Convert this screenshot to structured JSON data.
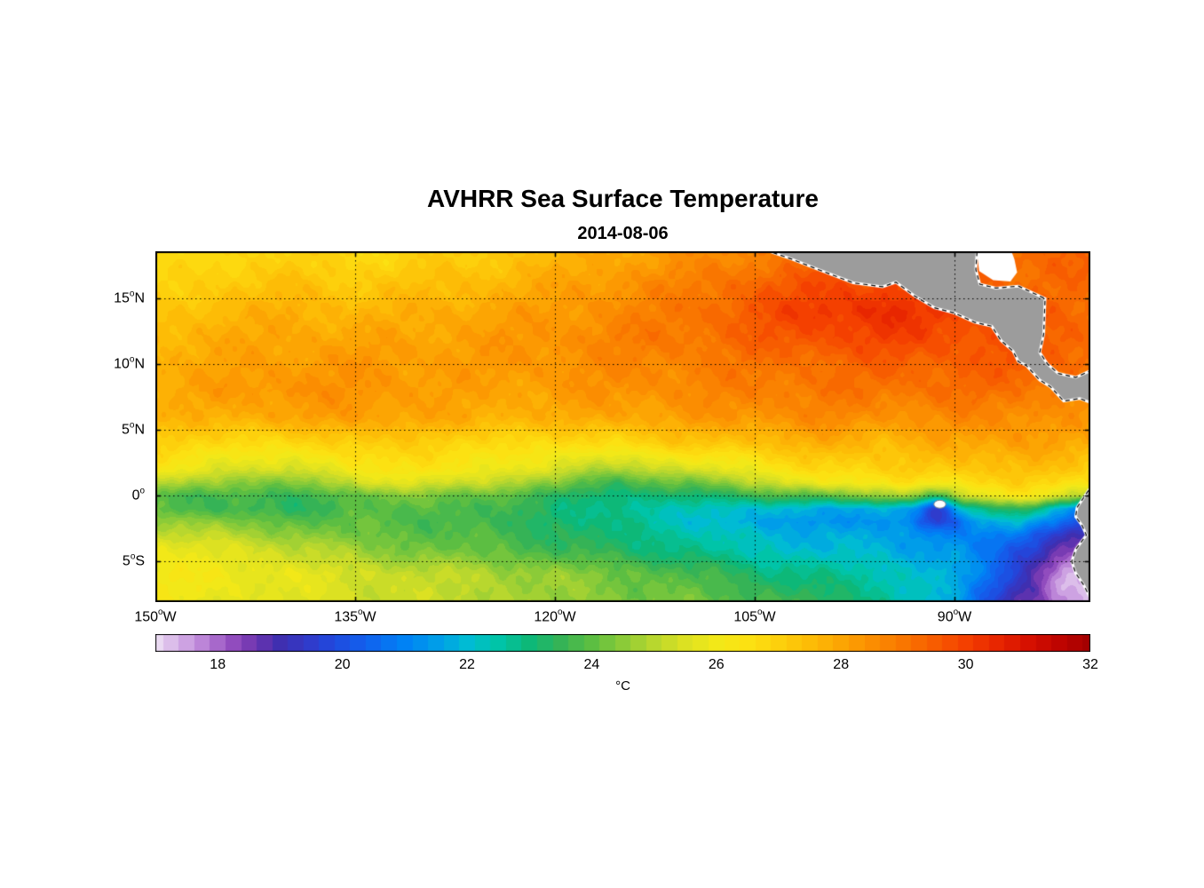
{
  "title": "AVHRR Sea Surface Temperature",
  "subtitle": "2014-08-06",
  "chart_data": {
    "type": "heatmap",
    "lon_range": [
      -150,
      -79.8
    ],
    "lat_range": [
      -8.1,
      18.6
    ],
    "lat_ticks": [
      {
        "num": "15",
        "sup": "o",
        "suffix": "N",
        "lat": 15
      },
      {
        "num": "10",
        "sup": "o",
        "suffix": "N",
        "lat": 10
      },
      {
        "num": "5",
        "sup": "o",
        "suffix": "N",
        "lat": 5
      },
      {
        "num": "0",
        "sup": "o",
        "suffix": "",
        "lat": 0
      },
      {
        "num": "5",
        "sup": "o",
        "suffix": "S",
        "lat": -5
      }
    ],
    "lon_ticks": [
      {
        "num": "150",
        "sup": "o",
        "suffix": "W",
        "lon": -150
      },
      {
        "num": "135",
        "sup": "o",
        "suffix": "W",
        "lon": -135
      },
      {
        "num": "120",
        "sup": "o",
        "suffix": "W",
        "lon": -120
      },
      {
        "num": "105",
        "sup": "o",
        "suffix": "W",
        "lon": -105
      },
      {
        "num": "90",
        "sup": "o",
        "suffix": "W",
        "lon": -90
      }
    ],
    "grid": {
      "lons": [
        -150,
        -145,
        -140,
        -135,
        -130,
        -125,
        -120,
        -115,
        -110,
        -105,
        -100,
        -95,
        -90,
        -85,
        -80
      ],
      "lats": [
        18,
        16,
        14,
        12,
        10,
        8,
        6,
        4,
        2,
        1,
        0,
        -1,
        -2,
        -3,
        -4,
        -6,
        -8
      ],
      "sst": [
        [
          26.6,
          26.8,
          27.0,
          26.8,
          27.0,
          27.2,
          27.6,
          28.0,
          28.4,
          28.8,
          29.2,
          29.6,
          29.4,
          29.2,
          29.4
        ],
        [
          26.8,
          27.2,
          27.4,
          27.2,
          27.4,
          27.6,
          28.0,
          28.4,
          28.8,
          29.4,
          29.8,
          30.0,
          29.6,
          29.2,
          29.2
        ],
        [
          27.2,
          27.6,
          27.8,
          27.6,
          27.8,
          28.0,
          28.2,
          28.6,
          29.0,
          29.6,
          30.2,
          30.4,
          30.0,
          29.4,
          29.2
        ],
        [
          27.6,
          27.9,
          28.0,
          28.0,
          28.0,
          28.2,
          28.4,
          28.8,
          29.0,
          29.4,
          29.8,
          30.0,
          29.8,
          29.6,
          29.4
        ],
        [
          27.8,
          28.0,
          28.2,
          28.3,
          28.2,
          28.2,
          28.4,
          28.6,
          28.8,
          29.0,
          29.2,
          29.4,
          29.4,
          29.6,
          29.2
        ],
        [
          27.8,
          28.2,
          28.4,
          28.4,
          28.2,
          28.0,
          28.2,
          28.4,
          28.6,
          28.8,
          29.0,
          29.0,
          29.2,
          29.0,
          28.8
        ],
        [
          27.6,
          27.8,
          28.0,
          28.2,
          28.0,
          27.8,
          27.8,
          28.0,
          28.2,
          28.4,
          28.6,
          28.4,
          28.6,
          28.6,
          28.2
        ],
        [
          27.0,
          26.8,
          26.6,
          27.2,
          27.0,
          26.8,
          26.6,
          26.8,
          27.2,
          27.4,
          27.8,
          27.6,
          27.9,
          28.2,
          27.8
        ],
        [
          26.2,
          25.6,
          25.2,
          26.2,
          26.4,
          26.0,
          25.4,
          24.8,
          25.4,
          26.0,
          26.8,
          27.0,
          27.2,
          27.5,
          27.0
        ],
        [
          25.2,
          24.6,
          24.2,
          25.4,
          25.6,
          25.2,
          24.4,
          23.6,
          24.2,
          25.0,
          26.0,
          26.4,
          26.7,
          27.0,
          26.4
        ],
        [
          23.9,
          23.7,
          23.5,
          24.0,
          24.4,
          24.0,
          23.4,
          22.9,
          23.1,
          23.5,
          24.0,
          24.6,
          25.6,
          26.2,
          25.0
        ],
        [
          24.0,
          23.6,
          23.4,
          23.8,
          24.0,
          23.6,
          23.2,
          22.6,
          22.4,
          22.0,
          21.8,
          21.6,
          22.4,
          23.6,
          20.5
        ],
        [
          24.8,
          24.4,
          24.0,
          24.0,
          23.8,
          23.6,
          23.2,
          22.8,
          22.2,
          21.6,
          21.4,
          21.2,
          21.0,
          22.0,
          19.8
        ],
        [
          25.4,
          25.0,
          24.6,
          24.2,
          24.0,
          23.8,
          23.4,
          23.0,
          22.6,
          22.0,
          21.8,
          21.6,
          21.2,
          20.6,
          19.0
        ],
        [
          25.8,
          25.6,
          25.2,
          24.6,
          24.2,
          24.0,
          23.6,
          23.2,
          22.8,
          22.2,
          22.0,
          21.8,
          21.4,
          20.0,
          18.6
        ],
        [
          26.2,
          26.0,
          25.8,
          25.4,
          25.2,
          24.9,
          24.6,
          24.2,
          23.8,
          23.2,
          22.8,
          22.4,
          21.8,
          19.5,
          18.2
        ],
        [
          26.0,
          25.8,
          25.6,
          25.4,
          25.2,
          25.0,
          24.6,
          24.4,
          24.2,
          23.8,
          23.4,
          22.8,
          21.5,
          18.8,
          17.6
        ]
      ]
    },
    "cold_spots": [
      {
        "lon": -91.3,
        "lat": -0.8,
        "r": 1.5,
        "delta": -2.4
      },
      {
        "lon": -81.5,
        "lat": -6.0,
        "r": 2.0,
        "delta": -1.2
      }
    ],
    "colorbar": {
      "range": [
        17,
        32
      ],
      "ticks": [
        18,
        20,
        22,
        24,
        26,
        28,
        30,
        32
      ],
      "label": "°C",
      "stops": [
        [
          17.0,
          "#EADAF2"
        ],
        [
          17.4,
          "#D4AEE6"
        ],
        [
          17.8,
          "#B87FD6"
        ],
        [
          18.2,
          "#9650C0"
        ],
        [
          18.6,
          "#6E34AE"
        ],
        [
          19.0,
          "#3F2FB0"
        ],
        [
          19.4,
          "#3338C6"
        ],
        [
          19.8,
          "#2247DC"
        ],
        [
          20.4,
          "#1162EE"
        ],
        [
          21.0,
          "#0082F5"
        ],
        [
          21.6,
          "#00A2E6"
        ],
        [
          22.0,
          "#00BBD4"
        ],
        [
          22.5,
          "#00C4A8"
        ],
        [
          23.0,
          "#0DB878"
        ],
        [
          23.5,
          "#35B356"
        ],
        [
          24.0,
          "#5CBE42"
        ],
        [
          24.5,
          "#8BCB38"
        ],
        [
          25.0,
          "#B8D72E"
        ],
        [
          25.5,
          "#DCE122"
        ],
        [
          26.0,
          "#F2E818"
        ],
        [
          26.5,
          "#FCE112"
        ],
        [
          27.0,
          "#FDD00C"
        ],
        [
          27.5,
          "#FDBC06"
        ],
        [
          28.0,
          "#FCA503"
        ],
        [
          28.5,
          "#FB8D01"
        ],
        [
          29.0,
          "#F97600"
        ],
        [
          29.5,
          "#F75C00"
        ],
        [
          30.0,
          "#F44000"
        ],
        [
          30.5,
          "#E82600"
        ],
        [
          31.0,
          "#D61000"
        ],
        [
          31.5,
          "#BE0400"
        ],
        [
          32.0,
          "#A40000"
        ]
      ]
    },
    "land_color": "#9C9C9C",
    "coast_color": "#FFFFFF",
    "land_polygons": {
      "central_america": [
        [
          -104.2,
          18.7
        ],
        [
          -102.2,
          18.0
        ],
        [
          -100.2,
          17.2
        ],
        [
          -97.6,
          16.2
        ],
        [
          -95.4,
          15.9
        ],
        [
          -94.4,
          16.25
        ],
        [
          -93.0,
          15.2
        ],
        [
          -91.5,
          14.3
        ],
        [
          -90.0,
          13.9
        ],
        [
          -88.5,
          13.2
        ],
        [
          -87.2,
          12.9
        ],
        [
          -86.5,
          11.8
        ],
        [
          -85.6,
          11.0
        ],
        [
          -85.2,
          10.2
        ],
        [
          -84.6,
          9.9
        ],
        [
          -83.6,
          8.8
        ],
        [
          -82.8,
          8.3
        ],
        [
          -81.8,
          7.2
        ],
        [
          -80.6,
          7.4
        ],
        [
          -79.6,
          7.0
        ],
        [
          -79.6,
          9.6
        ],
        [
          -80.9,
          9.0
        ],
        [
          -82.2,
          9.3
        ],
        [
          -83.0,
          10.0
        ],
        [
          -83.6,
          10.9
        ],
        [
          -83.3,
          12.3
        ],
        [
          -83.2,
          15.0
        ],
        [
          -85.2,
          15.95
        ],
        [
          -86.9,
          15.8
        ],
        [
          -88.1,
          16.1
        ],
        [
          -88.4,
          17.2
        ],
        [
          -88.3,
          18.7
        ]
      ],
      "south_america": [
        [
          -79.6,
          0.9
        ],
        [
          -80.2,
          0.0
        ],
        [
          -80.8,
          -0.9
        ],
        [
          -80.9,
          -1.6
        ],
        [
          -80.4,
          -2.3
        ],
        [
          -80.1,
          -3.0
        ],
        [
          -80.9,
          -4.1
        ],
        [
          -81.2,
          -5.0
        ],
        [
          -80.9,
          -5.9
        ],
        [
          -80.3,
          -6.8
        ],
        [
          -79.9,
          -7.6
        ],
        [
          -79.6,
          -8.3
        ]
      ]
    },
    "mask_patches": {
      "belize_bay": [
        [
          -88.35,
          18.8
        ],
        [
          -88.15,
          17.1
        ],
        [
          -87.1,
          16.4
        ],
        [
          -85.8,
          16.3
        ],
        [
          -85.3,
          17.0
        ],
        [
          -85.5,
          18.0
        ],
        [
          -85.8,
          18.8
        ]
      ]
    },
    "islands": [
      {
        "name": "galapagos",
        "lon": -91.1,
        "lat": -0.65,
        "rx": 0.45,
        "ry": 0.3
      }
    ]
  }
}
